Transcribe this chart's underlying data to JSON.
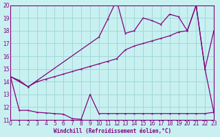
{
  "bg_color": "#c8f0f0",
  "line_color": "#800080",
  "grid_color": "#a0d8d8",
  "xlabel": "Windchill (Refroidissement éolien,°C)",
  "xlim": [
    0,
    23
  ],
  "ylim": [
    11,
    20
  ],
  "yticks": [
    11,
    12,
    13,
    14,
    15,
    16,
    17,
    18,
    19,
    20
  ],
  "xticks": [
    0,
    1,
    2,
    3,
    4,
    5,
    6,
    7,
    8,
    9,
    10,
    11,
    12,
    13,
    14,
    15,
    16,
    17,
    18,
    19,
    20,
    21,
    22,
    23
  ],
  "curve_bottom_x": [
    0,
    1,
    2,
    3,
    4,
    5,
    6,
    7,
    8,
    9,
    10,
    11,
    12,
    13,
    14,
    15,
    16,
    17,
    18,
    19,
    20,
    21,
    22,
    23
  ],
  "curve_bottom_y": [
    14.4,
    11.75,
    11.75,
    11.6,
    11.55,
    11.5,
    11.45,
    11.1,
    11.05,
    13.0,
    11.5,
    11.5,
    11.5,
    11.5,
    11.5,
    11.5,
    11.5,
    11.5,
    11.5,
    11.5,
    11.5,
    11.5,
    11.5,
    11.6
  ],
  "curve_mid_x": [
    0,
    2,
    3,
    4,
    5,
    6,
    7,
    8,
    9,
    10,
    11,
    12,
    13,
    14,
    15,
    16,
    17,
    18,
    19,
    20,
    21,
    22,
    23
  ],
  "curve_mid_y": [
    14.4,
    13.6,
    14.0,
    14.2,
    14.4,
    14.6,
    14.8,
    15.0,
    15.2,
    15.4,
    15.6,
    15.8,
    16.5,
    16.8,
    17.0,
    17.2,
    17.4,
    17.6,
    17.9,
    18.0,
    20.0,
    15.0,
    18.0
  ],
  "curve_top_x": [
    0,
    1,
    2,
    10,
    11,
    12,
    13,
    14,
    15,
    16,
    17,
    18,
    19,
    20,
    21,
    22,
    23
  ],
  "curve_top_y": [
    14.4,
    14.1,
    13.6,
    17.5,
    18.9,
    20.4,
    17.8,
    18.0,
    19.0,
    18.8,
    18.5,
    19.3,
    19.1,
    18.0,
    20.0,
    15.0,
    11.6
  ]
}
